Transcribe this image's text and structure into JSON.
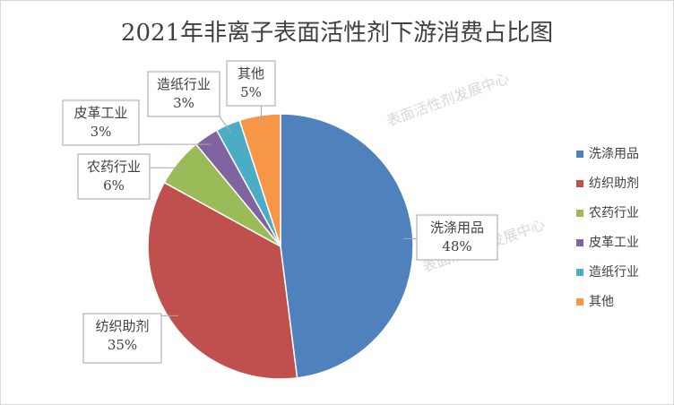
{
  "chart_data": {
    "type": "pie",
    "title": "2021年非离子表面活性剂下游消费占比图",
    "watermark": "表面活性剂发展中心",
    "categories": [
      "洗涤用品",
      "纺织助剂",
      "农药行业",
      "皮革工业",
      "造纸行业",
      "其他"
    ],
    "values": [
      48,
      35,
      6,
      3,
      3,
      5
    ],
    "value_labels": [
      "48%",
      "35%",
      "6%",
      "3%",
      "3%",
      "5%"
    ],
    "colors": [
      "#4f81bd",
      "#c0504d",
      "#9bbb59",
      "#8064a2",
      "#4bacc6",
      "#f79646"
    ],
    "legend": "right"
  }
}
